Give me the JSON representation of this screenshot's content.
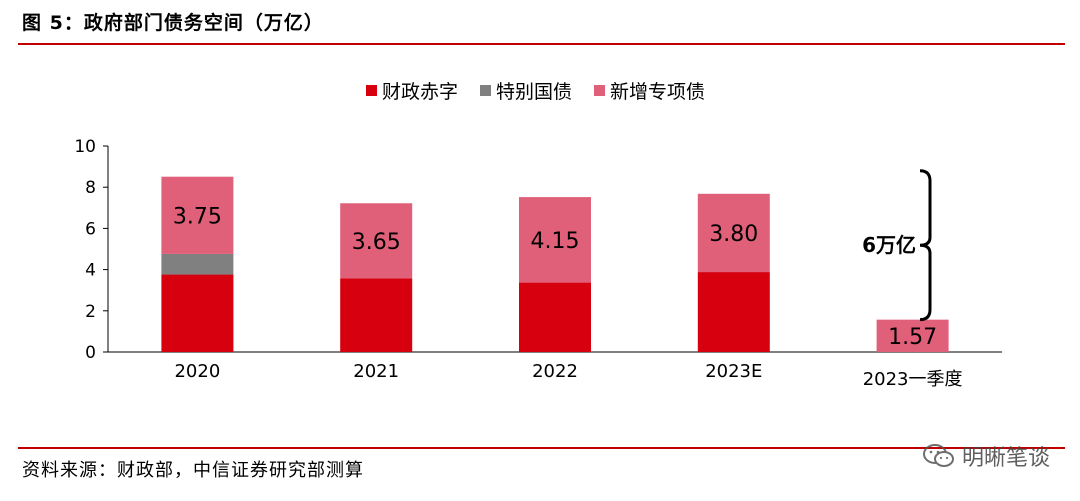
{
  "header": {
    "title": "图 5：政府部门债务空间（万亿）"
  },
  "footer": {
    "source": "资料来源：财政部，中信证券研究部测算",
    "watermark": "明晰笔谈"
  },
  "colors": {
    "deficit": "#d6000f",
    "special_bonds": "#808080",
    "local_special": "#e0607a",
    "rule": "#c00000"
  },
  "chart_data": {
    "type": "bar",
    "stacked": true,
    "title": "政府部门债务空间（万亿）",
    "categories": [
      "2020",
      "2021",
      "2022",
      "2023E",
      "2023一季度"
    ],
    "series": [
      {
        "name": "财政赤字",
        "values": [
          3.76,
          3.57,
          3.37,
          3.88,
          0
        ]
      },
      {
        "name": "特别国债",
        "values": [
          1.0,
          0,
          0,
          0,
          0
        ]
      },
      {
        "name": "新增专项债",
        "values": [
          3.75,
          3.65,
          4.15,
          3.8,
          1.57
        ]
      }
    ],
    "data_labels": [
      "3.75",
      "3.65",
      "4.15",
      "3.80",
      "1.57"
    ],
    "ylim": [
      0,
      10
    ],
    "yticks": [
      "0",
      "2",
      "4",
      "6",
      "8",
      "10"
    ],
    "legend": "top-center",
    "annotation": {
      "text": "6万亿",
      "from": 1.57,
      "to": 8.8
    }
  }
}
